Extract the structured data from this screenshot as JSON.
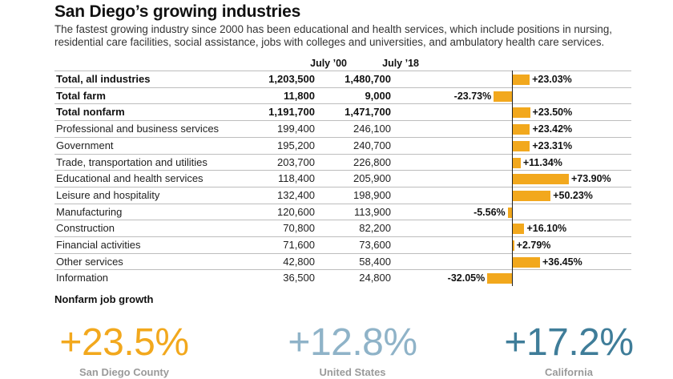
{
  "header": {
    "title": "San Diego’s growing industries",
    "subtitle": "The fastest growing industry since 2000 has been educational and health services, which include positions in nursing, residential care facilities, social assistance, jobs with colleges and universities, and ambulatory health care services."
  },
  "chart_data": {
    "type": "table",
    "columns": [
      "July ’00",
      "July ’18"
    ],
    "rows": [
      {
        "label": "Total, all industries",
        "jul00": "1,203,500",
        "jul18": "1,480,700",
        "change": 23.03,
        "change_label": "+23.03%",
        "bold": true
      },
      {
        "label": "Total farm",
        "jul00": "11,800",
        "jul18": "9,000",
        "change": -23.73,
        "change_label": "-23.73%",
        "bold": true
      },
      {
        "label": "Total nonfarm",
        "jul00": "1,191,700",
        "jul18": "1,471,700",
        "change": 23.5,
        "change_label": "+23.50%",
        "bold": true
      },
      {
        "label": "Professional and business services",
        "jul00": "199,400",
        "jul18": "246,100",
        "change": 23.42,
        "change_label": "+23.42%",
        "bold": false
      },
      {
        "label": "Government",
        "jul00": "195,200",
        "jul18": "240,700",
        "change": 23.31,
        "change_label": "+23.31%",
        "bold": false
      },
      {
        "label": "Trade, transportation and utilities",
        "jul00": "203,700",
        "jul18": "226,800",
        "change": 11.34,
        "change_label": "+11.34%",
        "bold": false
      },
      {
        "label": "Educational and health services",
        "jul00": "118,400",
        "jul18": "205,900",
        "change": 73.9,
        "change_label": "+73.90%",
        "bold": false
      },
      {
        "label": "Leisure and hospitality",
        "jul00": "132,400",
        "jul18": "198,900",
        "change": 50.23,
        "change_label": "+50.23%",
        "bold": false
      },
      {
        "label": "Manufacturing",
        "jul00": "120,600",
        "jul18": "113,900",
        "change": -5.56,
        "change_label": "-5.56%",
        "bold": false
      },
      {
        "label": "Construction",
        "jul00": "70,800",
        "jul18": "82,200",
        "change": 16.1,
        "change_label": "+16.10%",
        "bold": false
      },
      {
        "label": "Financial activities",
        "jul00": "71,600",
        "jul18": "73,600",
        "change": 2.79,
        "change_label": "+2.79%",
        "bold": false
      },
      {
        "label": "Other services",
        "jul00": "42,800",
        "jul18": "58,400",
        "change": 36.45,
        "change_label": "+36.45%",
        "bold": false
      },
      {
        "label": "Information",
        "jul00": "36,500",
        "jul18": "24,800",
        "change": -32.05,
        "change_label": "-32.05%",
        "bold": false
      }
    ],
    "bar_color": "#f2a81d"
  },
  "growth": {
    "heading": "Nonfarm job growth",
    "items": [
      {
        "value": "+23.5%",
        "label": "San Diego County",
        "color": "#f2a81d"
      },
      {
        "value": "+12.8%",
        "label": "United States",
        "color": "#8fb3c8"
      },
      {
        "value": "+17.2%",
        "label": "California",
        "color": "#3f7d99"
      }
    ]
  }
}
